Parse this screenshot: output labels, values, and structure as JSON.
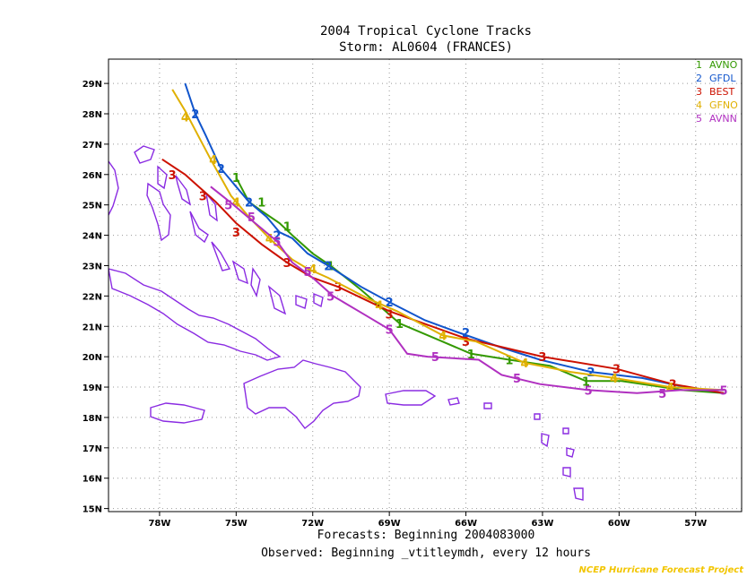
{
  "title": "2004 Tropical Cyclone Tracks",
  "subtitle": "Storm: AL0604 (FRANCES)",
  "footer": {
    "forecasts": "Forecasts: Beginning 2004083000",
    "observed": "Observed: Beginning _vtitleymdh, every 12 hours",
    "credit": "NCEP Hurricane Forecast Project"
  },
  "colors": {
    "land": "#8a2be2",
    "grid": "#999999"
  },
  "chart_data": {
    "type": "line",
    "xlim": [
      -80.0,
      -55.2
    ],
    "ylim": [
      14.9,
      29.8
    ],
    "grid": true,
    "legend_position": "top-right",
    "x_ticks": [
      {
        "value": -78,
        "label": "78W"
      },
      {
        "value": -75,
        "label": "75W"
      },
      {
        "value": -72,
        "label": "72W"
      },
      {
        "value": -69,
        "label": "69W"
      },
      {
        "value": -66,
        "label": "66W"
      },
      {
        "value": -63,
        "label": "63W"
      },
      {
        "value": -60,
        "label": "60W"
      },
      {
        "value": -57,
        "label": "57W"
      }
    ],
    "y_ticks": [
      {
        "value": 15,
        "label": "15N"
      },
      {
        "value": 16,
        "label": "16N"
      },
      {
        "value": 17,
        "label": "17N"
      },
      {
        "value": 18,
        "label": "18N"
      },
      {
        "value": 19,
        "label": "19N"
      },
      {
        "value": 20,
        "label": "20N"
      },
      {
        "value": 21,
        "label": "21N"
      },
      {
        "value": 22,
        "label": "22N"
      },
      {
        "value": 23,
        "label": "23N"
      },
      {
        "value": 24,
        "label": "24N"
      },
      {
        "value": 25,
        "label": "25N"
      },
      {
        "value": 26,
        "label": "26N"
      },
      {
        "value": 27,
        "label": "27N"
      },
      {
        "value": 28,
        "label": "28N"
      },
      {
        "value": 29,
        "label": "29N"
      }
    ],
    "series": [
      {
        "num": "1",
        "name": "AVNO",
        "color": "#339900",
        "points": [
          [
            -55.9,
            18.8
          ],
          [
            -57.5,
            18.9
          ],
          [
            -59.9,
            19.2
          ],
          [
            -61.3,
            19.2
          ],
          [
            -62.7,
            19.7
          ],
          [
            -64.3,
            19.9
          ],
          [
            -65.8,
            20.1
          ],
          [
            -67.2,
            20.6
          ],
          [
            -68.6,
            21.1
          ],
          [
            -70.1,
            22.2
          ],
          [
            -71.3,
            23.0
          ],
          [
            -72.0,
            23.4
          ],
          [
            -72.8,
            24.0
          ],
          [
            -73.3,
            24.4
          ],
          [
            -74.0,
            24.8
          ],
          [
            -74.5,
            25.1
          ],
          [
            -75.0,
            25.9
          ]
        ],
        "markers": [
          [
            -61.3,
            19.2
          ],
          [
            -64.3,
            19.9
          ],
          [
            -65.8,
            20.1
          ],
          [
            -68.6,
            21.1
          ],
          [
            -71.3,
            23.0
          ],
          [
            -73.0,
            24.3
          ],
          [
            -74.0,
            25.1
          ],
          [
            -75.0,
            25.9
          ]
        ]
      },
      {
        "num": "2",
        "name": "GFDL",
        "color": "#1155cc",
        "points": [
          [
            -55.9,
            18.8
          ],
          [
            -57.4,
            19.0
          ],
          [
            -59.1,
            19.3
          ],
          [
            -61.1,
            19.5
          ],
          [
            -63.1,
            19.9
          ],
          [
            -64.6,
            20.3
          ],
          [
            -66.3,
            20.8
          ],
          [
            -67.6,
            21.2
          ],
          [
            -69.0,
            21.8
          ],
          [
            -70.1,
            22.3
          ],
          [
            -71.4,
            23.0
          ],
          [
            -72.2,
            23.4
          ],
          [
            -72.8,
            23.9
          ],
          [
            -73.3,
            24.1
          ],
          [
            -73.8,
            24.6
          ],
          [
            -74.5,
            25.1
          ],
          [
            -75.0,
            25.6
          ],
          [
            -75.6,
            26.2
          ],
          [
            -76.2,
            27.3
          ],
          [
            -76.6,
            28.0
          ],
          [
            -77.0,
            29.0
          ]
        ],
        "markers": [
          [
            -61.1,
            19.5
          ],
          [
            -66.0,
            20.8
          ],
          [
            -69.0,
            21.8
          ],
          [
            -71.4,
            23.0
          ],
          [
            -73.4,
            24.0
          ],
          [
            -74.5,
            25.1
          ],
          [
            -75.6,
            26.2
          ],
          [
            -76.6,
            28.0
          ]
        ]
      },
      {
        "num": "3",
        "name": "BEST",
        "color": "#cc1100",
        "points": [
          [
            -55.9,
            18.8
          ],
          [
            -57.9,
            19.1
          ],
          [
            -60.1,
            19.6
          ],
          [
            -63.0,
            20.0
          ],
          [
            -66.0,
            20.6
          ],
          [
            -69.0,
            21.5
          ],
          [
            -71.0,
            22.3
          ],
          [
            -72.0,
            22.6
          ],
          [
            -73.0,
            23.1
          ],
          [
            -74.0,
            23.7
          ],
          [
            -75.0,
            24.4
          ],
          [
            -75.8,
            25.1
          ],
          [
            -76.2,
            25.4
          ],
          [
            -76.6,
            25.7
          ],
          [
            -77.0,
            26.0
          ],
          [
            -77.9,
            26.5
          ]
        ],
        "markers": [
          [
            -57.9,
            19.1
          ],
          [
            -60.1,
            19.6
          ],
          [
            -63.0,
            20.0
          ],
          [
            -66.0,
            20.5
          ],
          [
            -69.0,
            21.4
          ],
          [
            -71.0,
            22.3
          ],
          [
            -73.0,
            23.1
          ],
          [
            -75.0,
            24.1
          ],
          [
            -76.3,
            25.3
          ],
          [
            -77.5,
            26.0
          ]
        ]
      },
      {
        "num": "4",
        "name": "GFNO",
        "color": "#e0b000",
        "points": [
          [
            -55.9,
            18.9
          ],
          [
            -58.0,
            19.0
          ],
          [
            -60.2,
            19.3
          ],
          [
            -61.9,
            19.5
          ],
          [
            -63.7,
            19.8
          ],
          [
            -65.6,
            20.5
          ],
          [
            -66.9,
            20.7
          ],
          [
            -68.7,
            21.5
          ],
          [
            -69.8,
            21.9
          ],
          [
            -71.4,
            22.6
          ],
          [
            -72.2,
            22.9
          ],
          [
            -72.8,
            23.2
          ],
          [
            -73.7,
            23.9
          ],
          [
            -74.5,
            24.6
          ],
          [
            -75.2,
            25.3
          ],
          [
            -76.0,
            26.5
          ],
          [
            -76.5,
            27.3
          ],
          [
            -77.0,
            28.1
          ],
          [
            -77.5,
            28.8
          ]
        ],
        "markers": [
          [
            -58.0,
            19.0
          ],
          [
            -60.2,
            19.3
          ],
          [
            -63.7,
            19.8
          ],
          [
            -66.9,
            20.7
          ],
          [
            -69.4,
            21.7
          ],
          [
            -72.0,
            22.9
          ],
          [
            -73.7,
            23.9
          ],
          [
            -75.0,
            25.1
          ],
          [
            -75.9,
            26.5
          ],
          [
            -77.0,
            27.9
          ]
        ]
      },
      {
        "num": "5",
        "name": "AVNN",
        "color": "#b030c0",
        "points": [
          [
            -55.9,
            18.9
          ],
          [
            -57.6,
            18.9
          ],
          [
            -59.3,
            18.8
          ],
          [
            -61.2,
            18.9
          ],
          [
            -63.1,
            19.1
          ],
          [
            -64.6,
            19.4
          ],
          [
            -65.5,
            19.9
          ],
          [
            -67.5,
            20.0
          ],
          [
            -68.3,
            20.1
          ],
          [
            -69.0,
            20.9
          ],
          [
            -70.0,
            21.4
          ],
          [
            -71.2,
            22.0
          ],
          [
            -72.0,
            22.6
          ],
          [
            -72.8,
            23.1
          ],
          [
            -73.4,
            23.8
          ],
          [
            -74.4,
            24.5
          ],
          [
            -75.1,
            25.0
          ],
          [
            -76.0,
            25.6
          ]
        ],
        "markers": [
          [
            -55.9,
            18.9
          ],
          [
            -58.3,
            18.8
          ],
          [
            -61.2,
            18.9
          ],
          [
            -64.0,
            19.3
          ],
          [
            -67.2,
            20.0
          ],
          [
            -69.0,
            20.9
          ],
          [
            -71.3,
            22.0
          ],
          [
            -72.2,
            22.8
          ],
          [
            -73.4,
            23.8
          ],
          [
            -74.4,
            24.6
          ],
          [
            -75.3,
            25.0
          ]
        ]
      }
    ]
  }
}
